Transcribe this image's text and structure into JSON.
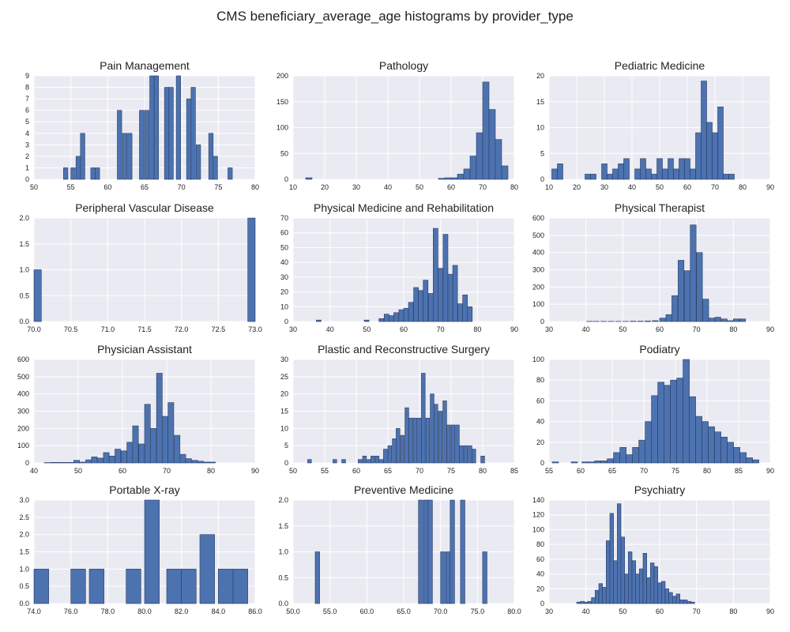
{
  "title": "CMS beneficiary_average_age histograms by provider_type",
  "style": {
    "plot_bg": "#eaeaf2",
    "grid": "#ffffff",
    "bar": "#4c72b0",
    "bar_edge": "#2b3f63",
    "text": "#222222"
  },
  "chart_data": [
    {
      "type": "bar",
      "title": "Pain Management",
      "xlim": [
        50,
        80
      ],
      "ylim": [
        0,
        9
      ],
      "xticks": [
        50,
        55,
        60,
        65,
        70,
        75,
        80
      ],
      "yticks": [
        0,
        1,
        2,
        3,
        4,
        5,
        6,
        7,
        8,
        9
      ],
      "bars": [
        [
          54,
          1
        ],
        [
          55,
          1
        ],
        [
          55.7,
          2
        ],
        [
          56.3,
          4
        ],
        [
          57.7,
          1
        ],
        [
          58.3,
          1
        ],
        [
          61.3,
          6
        ],
        [
          62,
          4
        ],
        [
          62.7,
          4
        ],
        [
          64.3,
          6
        ],
        [
          65,
          6
        ],
        [
          65.7,
          9
        ],
        [
          66.3,
          9
        ],
        [
          67.7,
          8
        ],
        [
          68.3,
          8
        ],
        [
          69.3,
          9
        ],
        [
          70.7,
          7
        ],
        [
          71.3,
          8
        ],
        [
          72,
          3
        ],
        [
          73.7,
          4
        ],
        [
          74.3,
          2
        ],
        [
          76.3,
          1
        ]
      ]
    },
    {
      "type": "bar",
      "title": "Pathology",
      "xlim": [
        10,
        80
      ],
      "ylim": [
        0,
        200
      ],
      "xticks": [
        10,
        20,
        30,
        40,
        50,
        60,
        70,
        80
      ],
      "yticks": [
        0,
        50,
        100,
        150,
        200
      ],
      "bars": [
        [
          14,
          3
        ],
        [
          16,
          0
        ],
        [
          18,
          0
        ],
        [
          20,
          0
        ],
        [
          22,
          0
        ],
        [
          24,
          0
        ],
        [
          26,
          0
        ],
        [
          28,
          0
        ],
        [
          30,
          0
        ],
        [
          32,
          0
        ],
        [
          34,
          0
        ],
        [
          36,
          0
        ],
        [
          38,
          0
        ],
        [
          40,
          0
        ],
        [
          42,
          0
        ],
        [
          44,
          0
        ],
        [
          46,
          0
        ],
        [
          48,
          0
        ],
        [
          50,
          0
        ],
        [
          52,
          0
        ],
        [
          54,
          0
        ],
        [
          56,
          2
        ],
        [
          58,
          3
        ],
        [
          60,
          3
        ],
        [
          62,
          10
        ],
        [
          64,
          20
        ],
        [
          66,
          45
        ],
        [
          68,
          90
        ],
        [
          70,
          188
        ],
        [
          72,
          135
        ],
        [
          74,
          77
        ],
        [
          76,
          26
        ]
      ]
    },
    {
      "type": "bar",
      "title": "Pediatric Medicine",
      "xlim": [
        10,
        90
      ],
      "ylim": [
        0,
        20
      ],
      "xticks": [
        10,
        20,
        30,
        40,
        50,
        60,
        70,
        80,
        90
      ],
      "yticks": [
        0,
        5,
        10,
        15,
        20
      ],
      "bars": [
        [
          11,
          2
        ],
        [
          13,
          3
        ],
        [
          23,
          1
        ],
        [
          25,
          1
        ],
        [
          29,
          3
        ],
        [
          31,
          1
        ],
        [
          33,
          2
        ],
        [
          35,
          3
        ],
        [
          37,
          4
        ],
        [
          41,
          2
        ],
        [
          43,
          4
        ],
        [
          45,
          2
        ],
        [
          47,
          1
        ],
        [
          49,
          4
        ],
        [
          51,
          2
        ],
        [
          53,
          4
        ],
        [
          55,
          2
        ],
        [
          57,
          4
        ],
        [
          59,
          4
        ],
        [
          61,
          2
        ],
        [
          63,
          9
        ],
        [
          65,
          19
        ],
        [
          67,
          11
        ],
        [
          69,
          9
        ],
        [
          71,
          14
        ],
        [
          73,
          1
        ],
        [
          75,
          1
        ]
      ]
    },
    {
      "type": "bar",
      "title": "Peripheral Vascular Disease",
      "xlim": [
        70,
        73
      ],
      "ylim": [
        0,
        2
      ],
      "xticks": [
        70.0,
        70.5,
        71.0,
        71.5,
        72.0,
        72.5,
        73.0
      ],
      "yticks": [
        0.0,
        0.5,
        1.0,
        1.5,
        2.0
      ],
      "tick_decimals": 1,
      "bar_width": 0.1,
      "bars": [
        [
          70.0,
          1
        ],
        [
          72.9,
          2
        ]
      ]
    },
    {
      "type": "bar",
      "title": "Physical Medicine and Rehabilitation",
      "xlim": [
        30,
        90
      ],
      "ylim": [
        0,
        70
      ],
      "xticks": [
        30,
        40,
        50,
        60,
        70,
        80,
        90
      ],
      "yticks": [
        0,
        10,
        20,
        30,
        40,
        50,
        60,
        70
      ],
      "bars": [
        [
          36.3,
          1
        ],
        [
          49.3,
          1
        ],
        [
          53.3,
          2
        ],
        [
          54.7,
          5
        ],
        [
          56,
          4
        ],
        [
          57.3,
          6
        ],
        [
          58.7,
          8
        ],
        [
          60,
          9
        ],
        [
          61.3,
          13
        ],
        [
          62.7,
          23
        ],
        [
          64,
          21
        ],
        [
          65.3,
          28
        ],
        [
          66.7,
          19
        ],
        [
          68,
          63
        ],
        [
          69.3,
          36
        ],
        [
          70.7,
          59
        ],
        [
          72,
          32
        ],
        [
          73.3,
          38
        ],
        [
          74.7,
          12
        ],
        [
          76,
          18
        ],
        [
          77.3,
          10
        ]
      ]
    },
    {
      "type": "bar",
      "title": "Physical Therapist",
      "xlim": [
        30,
        90
      ],
      "ylim": [
        0,
        600
      ],
      "xticks": [
        30,
        40,
        50,
        60,
        70,
        80,
        90
      ],
      "yticks": [
        0,
        100,
        200,
        300,
        400,
        500,
        600
      ],
      "bars": [
        [
          40.2,
          1
        ],
        [
          42,
          1
        ],
        [
          44,
          1
        ],
        [
          46,
          1
        ],
        [
          48,
          1
        ],
        [
          50,
          1
        ],
        [
          52,
          2
        ],
        [
          54,
          2
        ],
        [
          56,
          3
        ],
        [
          58,
          5
        ],
        [
          60,
          20
        ],
        [
          61.7,
          40
        ],
        [
          63.3,
          150
        ],
        [
          65,
          355
        ],
        [
          66.7,
          295
        ],
        [
          68.3,
          560
        ],
        [
          70,
          400
        ],
        [
          71.7,
          130
        ],
        [
          73.3,
          20
        ],
        [
          75,
          25
        ],
        [
          76.7,
          15
        ],
        [
          78.3,
          5
        ],
        [
          80,
          15
        ],
        [
          81.7,
          15
        ]
      ]
    },
    {
      "type": "bar",
      "title": "Physician Assistant",
      "xlim": [
        40,
        90
      ],
      "ylim": [
        0,
        600
      ],
      "xticks": [
        40,
        50,
        60,
        70,
        80,
        90
      ],
      "yticks": [
        0,
        100,
        200,
        300,
        400,
        500,
        600
      ],
      "bars": [
        [
          42.3,
          2
        ],
        [
          43.7,
          3
        ],
        [
          45,
          3
        ],
        [
          46.3,
          3
        ],
        [
          47.7,
          3
        ],
        [
          49,
          15
        ],
        [
          50.3,
          5
        ],
        [
          51.7,
          18
        ],
        [
          53,
          35
        ],
        [
          54.3,
          28
        ],
        [
          55.7,
          60
        ],
        [
          57,
          40
        ],
        [
          58.3,
          80
        ],
        [
          59.7,
          70
        ],
        [
          61,
          120
        ],
        [
          62.3,
          215
        ],
        [
          63.7,
          110
        ],
        [
          65,
          340
        ],
        [
          66.3,
          200
        ],
        [
          67.7,
          520
        ],
        [
          69,
          270
        ],
        [
          70.3,
          350
        ],
        [
          71.7,
          160
        ],
        [
          73,
          50
        ],
        [
          74.3,
          25
        ],
        [
          75.7,
          15
        ],
        [
          77,
          10
        ],
        [
          78.3,
          5
        ],
        [
          79.7,
          5
        ]
      ]
    },
    {
      "type": "bar",
      "title": "Plastic and Reconstructive Surgery",
      "xlim": [
        50,
        85
      ],
      "ylim": [
        0,
        30
      ],
      "xticks": [
        50,
        55,
        60,
        65,
        70,
        75,
        80,
        85
      ],
      "yticks": [
        0,
        5,
        10,
        15,
        20,
        25,
        30
      ],
      "bars": [
        [
          52.3,
          1
        ],
        [
          56.3,
          1
        ],
        [
          57.7,
          1
        ],
        [
          60.3,
          1
        ],
        [
          61,
          2
        ],
        [
          61.7,
          1
        ],
        [
          62.3,
          2
        ],
        [
          63,
          2
        ],
        [
          63.7,
          1
        ],
        [
          64.3,
          4
        ],
        [
          65,
          5
        ],
        [
          65.7,
          7
        ],
        [
          66.3,
          10
        ],
        [
          67,
          8
        ],
        [
          67.7,
          16
        ],
        [
          68.3,
          13
        ],
        [
          69,
          13
        ],
        [
          69.7,
          13
        ],
        [
          70.3,
          26
        ],
        [
          71,
          13
        ],
        [
          71.7,
          20
        ],
        [
          72.3,
          17
        ],
        [
          73,
          15
        ],
        [
          73.7,
          18
        ],
        [
          74.3,
          11
        ],
        [
          75,
          11
        ],
        [
          75.7,
          11
        ],
        [
          76.3,
          5
        ],
        [
          77,
          5
        ],
        [
          77.7,
          5
        ],
        [
          78.3,
          4
        ],
        [
          79.7,
          2
        ]
      ]
    },
    {
      "type": "bar",
      "title": "Podiatry",
      "xlim": [
        55,
        90
      ],
      "ylim": [
        0,
        100
      ],
      "xticks": [
        55,
        60,
        65,
        70,
        75,
        80,
        85,
        90
      ],
      "yticks": [
        0,
        20,
        40,
        60,
        80,
        100
      ],
      "bars": [
        [
          55.5,
          1
        ],
        [
          58.5,
          1
        ],
        [
          60.2,
          1
        ],
        [
          61.2,
          1
        ],
        [
          62.2,
          2
        ],
        [
          63.2,
          2
        ],
        [
          64.2,
          4
        ],
        [
          65.2,
          10
        ],
        [
          66.2,
          15
        ],
        [
          67.2,
          8
        ],
        [
          68.2,
          15
        ],
        [
          69.2,
          22
        ],
        [
          70.2,
          40
        ],
        [
          71.2,
          65
        ],
        [
          72.2,
          78
        ],
        [
          73.2,
          75
        ],
        [
          74.2,
          80
        ],
        [
          75.2,
          82
        ],
        [
          76.2,
          100
        ],
        [
          77.2,
          64
        ],
        [
          78.2,
          45
        ],
        [
          79.2,
          40
        ],
        [
          80.2,
          35
        ],
        [
          81.2,
          30
        ],
        [
          82.2,
          25
        ],
        [
          83.2,
          20
        ],
        [
          84.2,
          15
        ],
        [
          85.2,
          10
        ],
        [
          86.2,
          5
        ],
        [
          87.2,
          3
        ]
      ]
    },
    {
      "type": "bar",
      "title": "Portable X-ray",
      "xlim": [
        74,
        86
      ],
      "ylim": [
        0,
        3
      ],
      "xticks": [
        74,
        76,
        78,
        80,
        82,
        84,
        86
      ],
      "yticks": [
        0.0,
        0.5,
        1.0,
        1.5,
        2.0,
        2.5,
        3.0
      ],
      "tick_decimals": 1,
      "bars": [
        [
          74,
          1
        ],
        [
          76,
          1
        ],
        [
          77,
          1
        ],
        [
          79,
          1
        ],
        [
          80,
          3
        ],
        [
          81.2,
          1
        ],
        [
          82,
          1
        ],
        [
          83,
          2
        ],
        [
          84,
          1
        ],
        [
          84.8,
          1
        ]
      ]
    },
    {
      "type": "bar",
      "title": "Preventive Medicine",
      "xlim": [
        50,
        80
      ],
      "ylim": [
        0,
        2
      ],
      "xticks": [
        50,
        55,
        60,
        65,
        70,
        75,
        80
      ],
      "yticks": [
        0.0,
        0.5,
        1.0,
        1.5,
        2.0
      ],
      "tick_decimals": 1,
      "bars": [
        [
          53,
          1
        ],
        [
          67,
          2
        ],
        [
          67.7,
          2
        ],
        [
          68.3,
          2
        ],
        [
          70,
          1
        ],
        [
          70.7,
          1
        ],
        [
          71.3,
          2
        ],
        [
          72.7,
          2
        ],
        [
          75.7,
          1
        ]
      ]
    },
    {
      "type": "bar",
      "title": "Psychiatry",
      "xlim": [
        30,
        90
      ],
      "ylim": [
        0,
        140
      ],
      "xticks": [
        30,
        40,
        50,
        60,
        70,
        80,
        90
      ],
      "yticks": [
        0,
        20,
        40,
        60,
        80,
        100,
        120,
        140
      ],
      "bars": [
        [
          37.5,
          2
        ],
        [
          38.5,
          3
        ],
        [
          39.5,
          2
        ],
        [
          40.5,
          3
        ],
        [
          41.5,
          8
        ],
        [
          42.5,
          18
        ],
        [
          43.5,
          27
        ],
        [
          44.5,
          22
        ],
        [
          45.5,
          85
        ],
        [
          46.5,
          122
        ],
        [
          47.5,
          58
        ],
        [
          48.5,
          135
        ],
        [
          49.5,
          90
        ],
        [
          50.5,
          40
        ],
        [
          51.5,
          70
        ],
        [
          52.5,
          58
        ],
        [
          53.5,
          40
        ],
        [
          54.5,
          47
        ],
        [
          55.5,
          68
        ],
        [
          56.5,
          35
        ],
        [
          57.5,
          55
        ],
        [
          58.5,
          50
        ],
        [
          59.5,
          28
        ],
        [
          60.5,
          30
        ],
        [
          61.5,
          20
        ],
        [
          62.5,
          15
        ],
        [
          63.5,
          10
        ],
        [
          64.5,
          13
        ],
        [
          65.5,
          5
        ],
        [
          66.5,
          5
        ],
        [
          67.5,
          3
        ],
        [
          68.5,
          2
        ]
      ]
    }
  ]
}
